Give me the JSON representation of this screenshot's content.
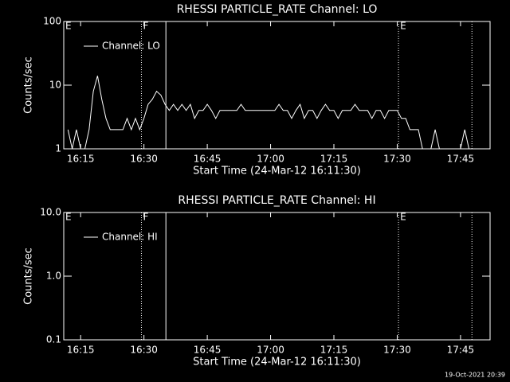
{
  "chart_data": [
    {
      "type": "line",
      "title": "RHESSI PARTICLE_RATE Channel: LO",
      "xlabel": "Start Time (24-Mar-12 16:11:30)",
      "ylabel": "Counts/sec",
      "log_y": true,
      "xlim": [
        971,
        1072
      ],
      "ylim": [
        1,
        100
      ],
      "xticks": [
        {
          "value": 975,
          "label": "16:15"
        },
        {
          "value": 990,
          "label": "16:30"
        },
        {
          "value": 1005,
          "label": "16:45"
        },
        {
          "value": 1020,
          "label": "17:00"
        },
        {
          "value": 1035,
          "label": "17:15"
        },
        {
          "value": 1050,
          "label": "17:30"
        },
        {
          "value": 1065,
          "label": "17:45"
        }
      ],
      "yticks": [
        1,
        10,
        100
      ],
      "markers": [
        {
          "x": 989.4,
          "style": "dotted"
        },
        {
          "x": 995.2,
          "style": "solid"
        },
        {
          "x": 1050.3,
          "style": "dotted"
        },
        {
          "x": 1067.7,
          "style": "dotted"
        }
      ],
      "flags": [
        {
          "label": "E",
          "x": 971.2
        },
        {
          "label": "F",
          "x": 989.6
        },
        {
          "label": "E",
          "x": 1050.5
        }
      ],
      "series": [
        {
          "name": "Channel: LO",
          "color": "#ffffff",
          "x": [
            972,
            973,
            974,
            975,
            976,
            977,
            978,
            979,
            980,
            981,
            982,
            983,
            984,
            985,
            986,
            987,
            988,
            989,
            990,
            991,
            992,
            993,
            994,
            995,
            996,
            997,
            998,
            999,
            1000,
            1001,
            1002,
            1003,
            1004,
            1005,
            1006,
            1007,
            1008,
            1009,
            1010,
            1011,
            1012,
            1013,
            1014,
            1015,
            1016,
            1017,
            1018,
            1019,
            1020,
            1021,
            1022,
            1023,
            1024,
            1025,
            1026,
            1027,
            1028,
            1029,
            1030,
            1031,
            1032,
            1033,
            1034,
            1035,
            1036,
            1037,
            1038,
            1039,
            1040,
            1041,
            1042,
            1043,
            1044,
            1045,
            1046,
            1047,
            1048,
            1049,
            1050,
            1051,
            1052,
            1053,
            1054,
            1055,
            1056,
            1057,
            1058,
            1059,
            1060,
            1061,
            1062,
            1063,
            1064,
            1065,
            1066,
            1067
          ],
          "values": [
            2,
            1,
            2,
            1,
            1,
            2,
            8,
            14,
            6,
            3,
            2,
            2,
            2,
            2,
            3,
            2,
            3,
            2,
            3,
            5,
            6,
            8,
            7,
            5,
            4,
            5,
            4,
            5,
            4,
            5,
            3,
            4,
            4,
            5,
            4,
            3,
            4,
            4,
            4,
            4,
            4,
            5,
            4,
            4,
            4,
            4,
            4,
            4,
            4,
            4,
            5,
            4,
            4,
            3,
            4,
            5,
            3,
            4,
            4,
            3,
            4,
            5,
            4,
            4,
            3,
            4,
            4,
            4,
            5,
            4,
            4,
            4,
            3,
            4,
            4,
            3,
            4,
            4,
            4,
            3,
            3,
            2,
            2,
            2,
            1,
            1,
            1,
            2,
            1,
            1,
            1,
            1,
            1,
            1,
            2,
            1
          ]
        }
      ]
    },
    {
      "type": "line",
      "title": "RHESSI PARTICLE_RATE Channel: HI",
      "xlabel": "Start Time (24-Mar-12 16:11:30)",
      "ylabel": "Counts/sec",
      "log_y": true,
      "xlim": [
        971,
        1072
      ],
      "ylim": [
        0.1,
        10
      ],
      "xticks": [
        {
          "value": 975,
          "label": "16:15"
        },
        {
          "value": 990,
          "label": "16:30"
        },
        {
          "value": 1005,
          "label": "16:45"
        },
        {
          "value": 1020,
          "label": "17:00"
        },
        {
          "value": 1035,
          "label": "17:15"
        },
        {
          "value": 1050,
          "label": "17:30"
        },
        {
          "value": 1065,
          "label": "17:45"
        }
      ],
      "yticks": [
        {
          "value": 0.1,
          "label": "0.1"
        },
        {
          "value": 1,
          "label": "1.0"
        },
        {
          "value": 10,
          "label": "10.0"
        }
      ],
      "markers": [
        {
          "x": 989.4,
          "style": "dotted"
        },
        {
          "x": 995.2,
          "style": "solid"
        },
        {
          "x": 1050.3,
          "style": "dotted"
        },
        {
          "x": 1067.7,
          "style": "dotted"
        }
      ],
      "flags": [
        {
          "label": "E",
          "x": 971.2
        },
        {
          "label": "F",
          "x": 989.6
        },
        {
          "label": "E",
          "x": 1050.5
        }
      ],
      "series": [
        {
          "name": "Channel: HI",
          "color": "#ffffff",
          "x": [],
          "values": []
        }
      ]
    }
  ],
  "footer": "19-Oct-2021 20:39"
}
